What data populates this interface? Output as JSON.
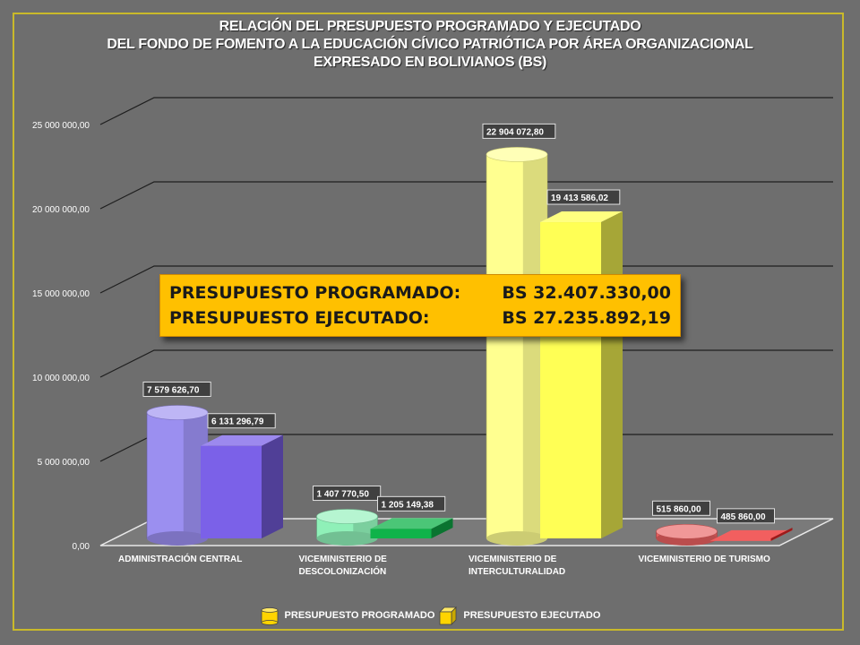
{
  "chart_data": {
    "type": "bar",
    "title": "RELACIÓN DEL PRESUPUESTO PROGRAMADO Y EJECUTADO",
    "subtitle": [
      "DEL FONDO DE FOMENTO A LA EDUCACIÓN CÍVICO PATRIÓTICA POR ÁREA ORGANIZACIONAL",
      "EXPRESADO EN BOLIVIANOS (BS)"
    ],
    "categories": [
      [
        "ADMINISTRACIÓN CENTRAL"
      ],
      [
        "VICEMINISTERIO DE",
        "DESCOLONIZACIÓN"
      ],
      [
        "VICEMINISTERIO DE",
        "INTERCULTURALIDAD"
      ],
      [
        "VICEMINISTERIO DE TURISMO"
      ]
    ],
    "series": [
      {
        "name": "PRESUPUESTO PROGRAMADO",
        "shape": "cylinder",
        "values": [
          7579626.7,
          1407770.5,
          22904072.8,
          515860.0
        ],
        "labels": [
          "7 579 626,70",
          "1 407 770,50",
          "22 904 072,80",
          "515 860,00"
        ]
      },
      {
        "name": "PRESUPUESTO EJECUTADO",
        "shape": "box",
        "values": [
          6131296.79,
          1205149.38,
          19413586.02,
          485860.0
        ],
        "labels": [
          "6 131 296,79",
          "1 205 149,38",
          "19 413 586,02",
          "485 860,00"
        ]
      }
    ],
    "colors": [
      [
        "#9b8ff0",
        "#7b61e8"
      ],
      [
        "#8ff0b8",
        "#0fb34a"
      ],
      [
        "#ffff90",
        "#ffff55"
      ],
      [
        "#e86060",
        "#ee2a2a"
      ]
    ],
    "yticks": [
      0,
      5000000,
      10000000,
      15000000,
      20000000,
      25000000
    ],
    "ytick_labels": [
      "0,00",
      "5 000 000,00",
      "10 000 000,00",
      "15 000 000,00",
      "20 000 000,00",
      "25 000 000,00"
    ],
    "ylim": [
      0,
      25000000
    ],
    "grid": true,
    "legend_position": "bottom"
  },
  "summary": {
    "programado_label": "PRESUPUESTO PROGRAMADO:",
    "programado_value": "BS 32.407.330,00",
    "ejecutado_label": "PRESUPUESTO EJECUTADO:",
    "ejecutado_value": "BS 27.235.892,19"
  }
}
